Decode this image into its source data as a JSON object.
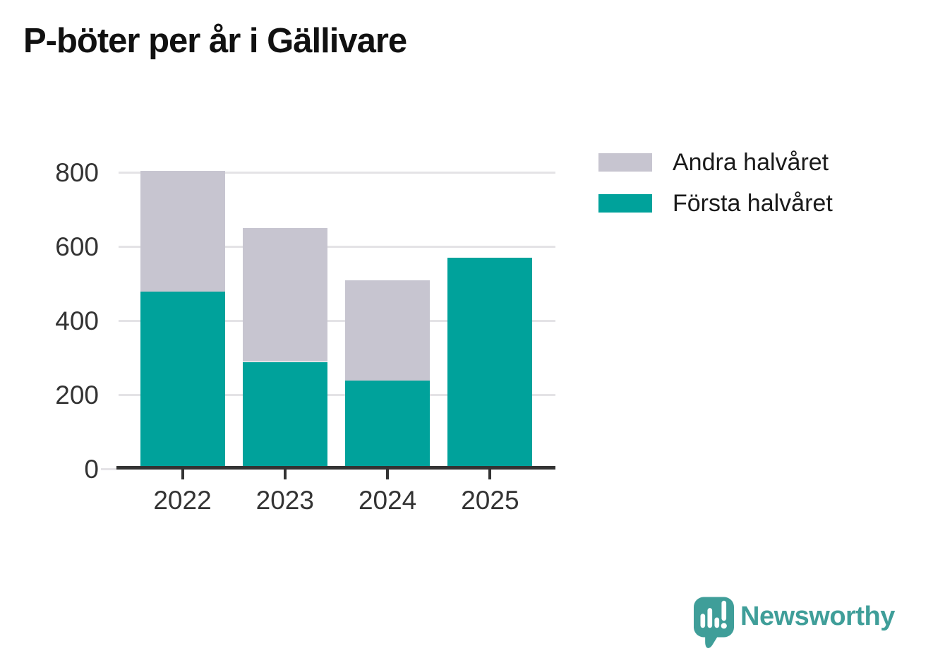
{
  "title": "P-böter per år i Gällivare",
  "legend": {
    "items": [
      {
        "label": "Andra halvåret",
        "color_key": "second_half"
      },
      {
        "label": "Första halvåret",
        "color_key": "first_half"
      }
    ]
  },
  "colors": {
    "first_half": "#00a29b",
    "second_half": "#c7c5d0",
    "grid": "#e4e3e6",
    "axis": "#333333",
    "tick_label": "#333333",
    "title_text": "#111111",
    "legend_text": "#1a1a1a",
    "brand_teal": "#3f9e99",
    "background": "#ffffff"
  },
  "chart_data": {
    "type": "bar",
    "stacked": true,
    "title": "P-böter per år i Gällivare",
    "categories": [
      "2022",
      "2023",
      "2024",
      "2025"
    ],
    "series": [
      {
        "name": "Första halvåret",
        "slug": "forsta-halvaret",
        "color": "#00a29b",
        "values": [
          480,
          290,
          240,
          570
        ]
      },
      {
        "name": "Andra halvåret",
        "slug": "andra-halvaret",
        "color": "#c7c5d0",
        "values": [
          325,
          360,
          270,
          0
        ]
      }
    ],
    "totals": [
      805,
      650,
      510,
      570
    ],
    "xlabel": "",
    "ylabel": "",
    "ylim": [
      0,
      840
    ],
    "yticks": [
      0,
      200,
      400,
      600,
      800
    ],
    "grid": true,
    "legend_position": "top-right"
  },
  "branding": {
    "logo_text": "Newsworthy",
    "logo_icon": "newsworthy-speech-bubble-bar-chart-icon"
  }
}
